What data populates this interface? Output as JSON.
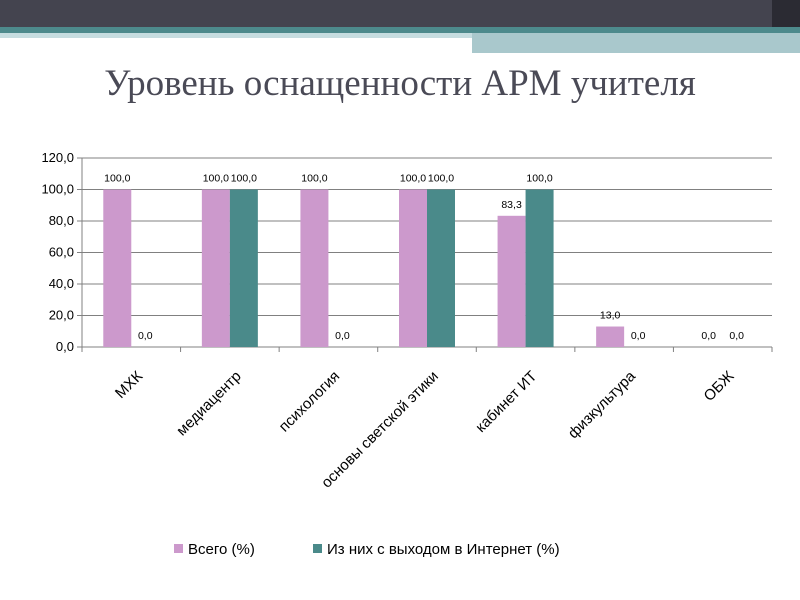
{
  "slide": {
    "title": "Уровень оснащенности АРМ учителя"
  },
  "colors": {
    "s1": "#cc99cc",
    "s2": "#4a8a8a"
  },
  "chart_data": {
    "type": "bar",
    "categories": [
      "МХК",
      "медиацентр",
      "психология",
      "основы светской этики",
      "кабинет ИТ",
      "физкультура",
      "ОБЖ"
    ],
    "series": [
      {
        "name": "Всего (%)",
        "values": [
          100.0,
          100.0,
          100.0,
          100.0,
          83.3,
          13.0,
          0.0
        ],
        "labels": [
          "100,0",
          "100,0",
          "100,0",
          "100,0",
          "83,3",
          "13,0",
          "0,0"
        ]
      },
      {
        "name": "Из них с выходом в Интернет (%)",
        "values": [
          0.0,
          100.0,
          0.0,
          100.0,
          100.0,
          0.0,
          0.0
        ],
        "labels": [
          "0,0",
          "100,0",
          "0,0",
          "100,0",
          "100,0",
          "0,0",
          "0,0"
        ]
      }
    ],
    "ylim": [
      0,
      120
    ],
    "yticks": [
      0,
      20,
      40,
      60,
      80,
      100,
      120
    ],
    "ytick_labels": [
      "0,0",
      "20,0",
      "40,0",
      "60,0",
      "80,0",
      "100,0",
      "120,0"
    ],
    "grid": true,
    "legend": "bottom"
  }
}
